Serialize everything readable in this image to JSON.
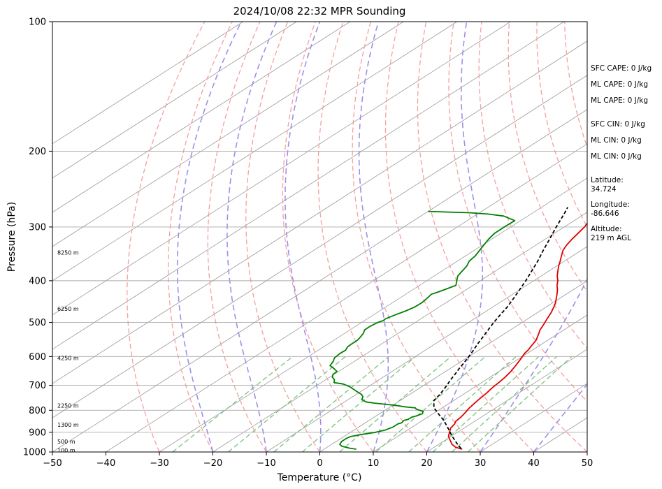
{
  "chart_data": {
    "type": "line",
    "subtype": "skew-t log-p sounding",
    "title": "2024/10/08 22:32 MPR Sounding",
    "xlabel": "Temperature (°C)",
    "ylabel": "Pressure (hPa)",
    "xlim": [
      -50,
      50
    ],
    "ylim": [
      1000,
      100
    ],
    "yscale": "log",
    "x_ticks": [
      -50,
      -40,
      -30,
      -20,
      -10,
      0,
      10,
      20,
      30,
      40,
      50
    ],
    "y_ticks": [
      100,
      200,
      300,
      400,
      500,
      600,
      700,
      800,
      900,
      1000
    ],
    "grid": true,
    "series": [
      {
        "color": "#e00000",
        "style": "solid",
        "points": [
          [
            25.8,
            985
          ],
          [
            24,
            975
          ],
          [
            22.5,
            960
          ],
          [
            21,
            940
          ],
          [
            19.5,
            920
          ],
          [
            18.5,
            900
          ],
          [
            17.5,
            880
          ],
          [
            17,
            860
          ],
          [
            16.5,
            850
          ],
          [
            16.2,
            830
          ],
          [
            15.7,
            810
          ],
          [
            15.1,
            790
          ],
          [
            14.7,
            770
          ],
          [
            14.3,
            750
          ],
          [
            14,
            730
          ],
          [
            13.5,
            710
          ],
          [
            13.2,
            690
          ],
          [
            12.8,
            670
          ],
          [
            12.2,
            650
          ],
          [
            11.4,
            630
          ],
          [
            10.5,
            610
          ],
          [
            9.5,
            590
          ],
          [
            9.2,
            580
          ],
          [
            8.5,
            565
          ],
          [
            7.8,
            550
          ],
          [
            6.7,
            535
          ],
          [
            5.5,
            520
          ],
          [
            4.6,
            505
          ],
          [
            3.6,
            490
          ],
          [
            2.6,
            475
          ],
          [
            1.4,
            460
          ],
          [
            0.5,
            450
          ],
          [
            -0.6,
            440
          ],
          [
            -1.7,
            430
          ],
          [
            -2.9,
            420
          ],
          [
            -4.3,
            410
          ],
          [
            -5.5,
            400
          ],
          [
            -7,
            390
          ],
          [
            -8.3,
            380
          ],
          [
            -9.6,
            370
          ],
          [
            -10.8,
            360
          ],
          [
            -12.1,
            350
          ],
          [
            -13.4,
            340
          ],
          [
            -14.3,
            330
          ],
          [
            -15,
            320
          ],
          [
            -15.6,
            310
          ],
          [
            -16.2,
            300
          ],
          [
            -17.2,
            290
          ],
          [
            -18,
            280
          ],
          [
            -18.6,
            273
          ]
        ]
      },
      {
        "color": "#008000",
        "style": "solid",
        "points": [
          [
            6,
            985
          ],
          [
            4.5,
            980
          ],
          [
            2.5,
            970
          ],
          [
            1.5,
            960
          ],
          [
            1,
            945
          ],
          [
            1,
            930
          ],
          [
            1.3,
            920
          ],
          [
            2.8,
            910
          ],
          [
            4.7,
            900
          ],
          [
            5.8,
            890
          ],
          [
            6.4,
            875
          ],
          [
            6.4,
            860
          ],
          [
            6.8,
            855
          ],
          [
            6.5,
            845
          ],
          [
            7,
            840
          ],
          [
            7,
            830
          ],
          [
            7.5,
            825
          ],
          [
            8,
            815
          ],
          [
            7.5,
            805
          ],
          [
            5.5,
            795
          ],
          [
            5,
            790
          ],
          [
            3.5,
            787
          ],
          [
            2.5,
            785
          ],
          [
            1.5,
            782
          ],
          [
            0,
            778
          ],
          [
            -2,
            774
          ],
          [
            -4,
            770
          ],
          [
            -6,
            765
          ],
          [
            -7.5,
            755
          ],
          [
            -8,
            745
          ],
          [
            -9,
            735
          ],
          [
            -10.5,
            725
          ],
          [
            -12,
            715
          ],
          [
            -13.5,
            705
          ],
          [
            -15.5,
            695
          ],
          [
            -17.6,
            690
          ],
          [
            -18.3,
            680
          ],
          [
            -19.5,
            670
          ],
          [
            -20.2,
            660
          ],
          [
            -20.3,
            650
          ],
          [
            -21.7,
            640
          ],
          [
            -23.3,
            630
          ],
          [
            -24,
            615
          ],
          [
            -24.7,
            605
          ],
          [
            -25,
            590
          ],
          [
            -24.9,
            580
          ],
          [
            -25.5,
            570
          ],
          [
            -25.6,
            560
          ],
          [
            -25.6,
            550
          ],
          [
            -26,
            540
          ],
          [
            -26.5,
            530
          ],
          [
            -27.3,
            520
          ],
          [
            -27.3,
            510
          ],
          [
            -27,
            500
          ],
          [
            -26.5,
            495
          ],
          [
            -26.6,
            490
          ],
          [
            -25.9,
            480
          ],
          [
            -25.1,
            470
          ],
          [
            -24.6,
            460
          ],
          [
            -24.5,
            450
          ],
          [
            -24.8,
            440
          ],
          [
            -25.2,
            430
          ],
          [
            -24.6,
            425
          ],
          [
            -24.1,
            420
          ],
          [
            -23.2,
            410
          ],
          [
            -24.4,
            400
          ],
          [
            -25.6,
            390
          ],
          [
            -26.2,
            380
          ],
          [
            -26.8,
            370
          ],
          [
            -27.8,
            360
          ],
          [
            -28.2,
            350
          ],
          [
            -29,
            340
          ],
          [
            -29.8,
            330
          ],
          [
            -30.6,
            320
          ],
          [
            -31.2,
            310
          ],
          [
            -31.2,
            300
          ],
          [
            -31.1,
            290
          ],
          [
            -34.5,
            283
          ],
          [
            -38,
            280
          ],
          [
            -42,
            278
          ],
          [
            -46,
            277
          ],
          [
            -50,
            276
          ]
        ]
      },
      {
        "color": "#000000",
        "style": "dashed",
        "points": [
          [
            25.5,
            983
          ],
          [
            22.7,
            950
          ],
          [
            19.8,
            915
          ],
          [
            17,
            880
          ],
          [
            14,
            845
          ],
          [
            11,
            815
          ],
          [
            8.5,
            790
          ],
          [
            6.3,
            760
          ],
          [
            5.8,
            740
          ],
          [
            5.1,
            720
          ],
          [
            4.3,
            700
          ],
          [
            3.4,
            680
          ],
          [
            2.6,
            660
          ],
          [
            1.7,
            640
          ],
          [
            0.9,
            620
          ],
          [
            0,
            600
          ],
          [
            -1,
            580
          ],
          [
            -2.1,
            560
          ],
          [
            -3.1,
            540
          ],
          [
            -4.2,
            520
          ],
          [
            -5.3,
            500
          ],
          [
            -6.3,
            480
          ],
          [
            -7.3,
            460
          ],
          [
            -8.6,
            440
          ],
          [
            -10,
            420
          ],
          [
            -11.5,
            400
          ],
          [
            -13.2,
            380
          ],
          [
            -15,
            360
          ],
          [
            -17.1,
            340
          ],
          [
            -19.2,
            320
          ],
          [
            -21.5,
            300
          ],
          [
            -23.8,
            280
          ],
          [
            -25.1,
            270
          ]
        ]
      }
    ],
    "height_labels": [
      {
        "label": "100 m",
        "pressure": 990
      },
      {
        "label": "500 m",
        "pressure": 945
      },
      {
        "label": "1300 m",
        "pressure": 865
      },
      {
        "label": "2250 m",
        "pressure": 780
      },
      {
        "label": "4250 m",
        "pressure": 605
      },
      {
        "label": "6250 m",
        "pressure": 465
      },
      {
        "label": "8250 m",
        "pressure": 344
      }
    ],
    "stats": [
      {
        "text": "SFC CAPE: 0 J/kg"
      },
      {
        "text": "ML CAPE: 0 J/kg"
      },
      {
        "text": "ML CAPE: 0 J/kg"
      },
      {
        "text": "SFC CIN: 0 J/kg"
      },
      {
        "text": "ML CIN: 0 J/kg"
      },
      {
        "text": "ML CIN: 0 J/kg"
      },
      {
        "text": "Latitude:\n34.724"
      },
      {
        "text": "Longitude:\n-86.646"
      },
      {
        "text": "Altitude:\n219 m AGL"
      }
    ],
    "background_lines": {
      "isotherm_color": "#999999",
      "dry_adiabat_color": "#f4a0a0",
      "moist_adiabat_color": "#9f8fea",
      "mixing_ratio_color": "#7cc17c"
    }
  }
}
